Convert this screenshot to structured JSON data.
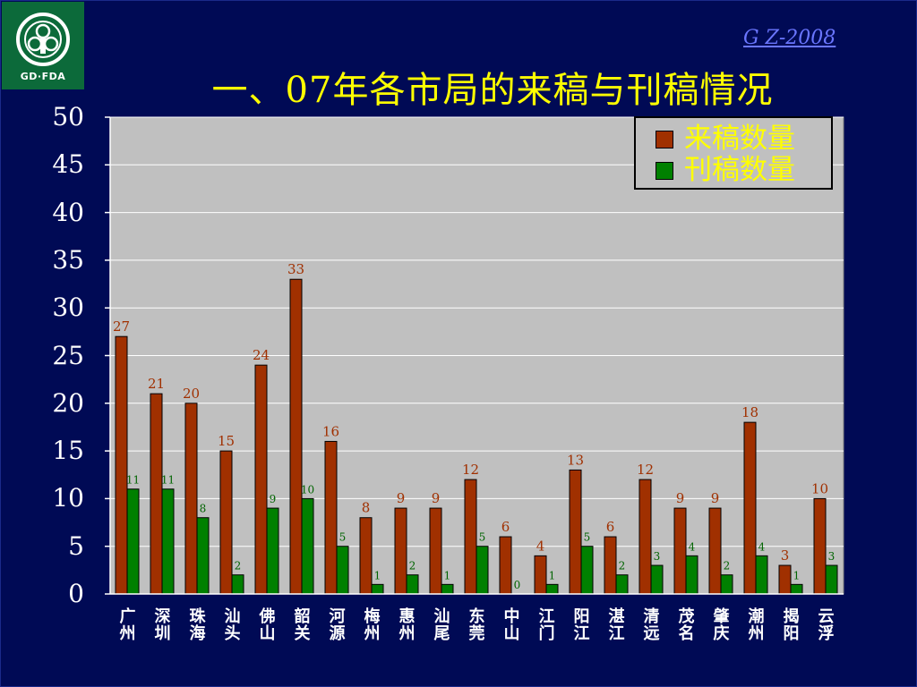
{
  "header": {
    "logo_text": "GD·FDA",
    "corner_code": "G Z-2008",
    "title": "一、07年各市局的来稿与刊稿情况"
  },
  "colors": {
    "background": "#000a55",
    "plot_area": "#c0c0c0",
    "received": "#a03000",
    "published": "#008000",
    "text": "#ffffff",
    "title": "#ffff00"
  },
  "chart_data": {
    "type": "bar",
    "categories": [
      "广州",
      "深圳",
      "珠海",
      "汕头",
      "佛山",
      "韶关",
      "河源",
      "梅州",
      "惠州",
      "汕尾",
      "东莞",
      "中山",
      "江门",
      "阳江",
      "湛江",
      "清远",
      "茂名",
      "肇庆",
      "潮州",
      "揭阳",
      "云浮"
    ],
    "series": [
      {
        "name": "来稿数量",
        "values": [
          27,
          21,
          20,
          15,
          24,
          33,
          16,
          8,
          9,
          9,
          12,
          6,
          4,
          13,
          6,
          12,
          9,
          9,
          18,
          3,
          10
        ]
      },
      {
        "name": "刊稿数量",
        "values": [
          11,
          11,
          8,
          2,
          9,
          10,
          5,
          1,
          2,
          1,
          5,
          0,
          1,
          5,
          2,
          3,
          4,
          2,
          4,
          1,
          3
        ]
      }
    ],
    "yticks": [
      "50",
      "45",
      "40",
      "35",
      "30",
      "25",
      "20",
      "15",
      "10",
      "5",
      "0"
    ],
    "ylim": [
      0,
      50
    ],
    "grid": true,
    "legend_position": "top-right"
  }
}
